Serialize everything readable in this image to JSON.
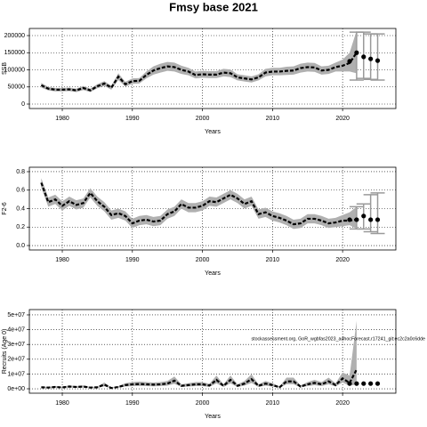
{
  "title": "Fmsy base 2021",
  "chart_data": [
    {
      "type": "line",
      "ylabel": "SSB",
      "xlabel": "Years",
      "xlim": [
        1975.3,
        2027.6
      ],
      "xticks": [
        1980,
        1990,
        2000,
        2010,
        2020
      ],
      "ylim": [
        -13000,
        220800
      ],
      "yticks": [
        0,
        50000,
        100000,
        150000,
        200000
      ],
      "grid": true,
      "color": "#000000",
      "band_color": "#b0b0b0",
      "x": [
        1977,
        1978,
        1979,
        1980,
        1981,
        1982,
        1983,
        1984,
        1985,
        1986,
        1987,
        1988,
        1989,
        1990,
        1991,
        1992,
        1993,
        1994,
        1995,
        1996,
        1997,
        1998,
        1999,
        2000,
        2001,
        2002,
        2003,
        2004,
        2005,
        2006,
        2007,
        2008,
        2009,
        2010,
        2011,
        2012,
        2013,
        2014,
        2015,
        2016,
        2017,
        2018,
        2019,
        2020,
        2021,
        2022
      ],
      "values": [
        55000,
        45000,
        42000,
        42000,
        43000,
        40000,
        47000,
        40000,
        52000,
        60000,
        48000,
        80000,
        58000,
        67000,
        68000,
        85000,
        98000,
        105000,
        110000,
        108000,
        100000,
        95000,
        85000,
        87000,
        86000,
        86000,
        92000,
        90000,
        78000,
        75000,
        72000,
        78000,
        92000,
        95000,
        95000,
        97000,
        98000,
        105000,
        108000,
        107000,
        98000,
        100000,
        108000,
        112000,
        120000,
        150000
      ],
      "lower": [
        48000,
        40000,
        37000,
        37000,
        38000,
        35000,
        41000,
        35000,
        46000,
        53000,
        42000,
        70000,
        51000,
        59000,
        60000,
        75000,
        86000,
        92000,
        97000,
        95000,
        88000,
        84000,
        75000,
        77000,
        76000,
        76000,
        81000,
        79000,
        69000,
        66000,
        63000,
        69000,
        81000,
        84000,
        84000,
        85000,
        86000,
        92000,
        95000,
        94000,
        86000,
        88000,
        95000,
        95000,
        95000,
        90000
      ],
      "upper": [
        62000,
        50000,
        47000,
        47000,
        48000,
        45000,
        53000,
        45000,
        58000,
        67000,
        54000,
        90000,
        65000,
        75000,
        76000,
        95000,
        110000,
        118000,
        123000,
        121000,
        112000,
        106000,
        95000,
        97000,
        96000,
        96000,
        103000,
        101000,
        87000,
        84000,
        81000,
        87000,
        103000,
        106000,
        106000,
        109000,
        110000,
        118000,
        121000,
        120000,
        110000,
        112000,
        121000,
        130000,
        150000,
        215000
      ],
      "forecast": {
        "x": [
          2021,
          2022,
          2023,
          2024,
          2025
        ],
        "values": [
          125000,
          150000,
          138000,
          132000,
          127000
        ],
        "low": [
          null,
          70000,
          75000,
          72000,
          70000
        ],
        "high": [
          null,
          210000,
          210000,
          205000,
          205000
        ]
      }
    },
    {
      "type": "line",
      "ylabel": "F2-6",
      "xlabel": "Years",
      "xlim": [
        1975.3,
        2027.6
      ],
      "xticks": [
        1980,
        1990,
        2000,
        2010,
        2020
      ],
      "ylim": [
        -0.048,
        0.848
      ],
      "yticks": [
        {
          "value": 0,
          "label": "0.0"
        },
        0.2,
        0.4,
        0.6,
        0.8
      ],
      "grid": true,
      "color": "#000000",
      "band_color": "#b0b0b0",
      "x": [
        1977,
        1978,
        1979,
        1980,
        1981,
        1982,
        1983,
        1984,
        1985,
        1986,
        1987,
        1988,
        1989,
        1990,
        1991,
        1992,
        1993,
        1994,
        1995,
        1996,
        1997,
        1998,
        1999,
        2000,
        2001,
        2002,
        2003,
        2004,
        2005,
        2006,
        2007,
        2008,
        2009,
        2010,
        2011,
        2012,
        2013,
        2014,
        2015,
        2016,
        2017,
        2018,
        2019,
        2020,
        2021,
        2022
      ],
      "values": [
        0.68,
        0.47,
        0.5,
        0.43,
        0.48,
        0.44,
        0.46,
        0.57,
        0.48,
        0.42,
        0.33,
        0.35,
        0.32,
        0.24,
        0.27,
        0.28,
        0.26,
        0.27,
        0.34,
        0.37,
        0.45,
        0.41,
        0.41,
        0.43,
        0.48,
        0.47,
        0.51,
        0.55,
        0.51,
        0.45,
        0.48,
        0.34,
        0.36,
        0.32,
        0.3,
        0.27,
        0.23,
        0.24,
        0.29,
        0.29,
        0.27,
        0.24,
        0.25,
        0.27,
        0.27,
        0.28
      ],
      "lower": [
        0.63,
        0.42,
        0.45,
        0.38,
        0.43,
        0.39,
        0.41,
        0.52,
        0.43,
        0.37,
        0.28,
        0.3,
        0.27,
        0.19,
        0.22,
        0.23,
        0.21,
        0.22,
        0.29,
        0.32,
        0.4,
        0.36,
        0.36,
        0.38,
        0.43,
        0.42,
        0.46,
        0.5,
        0.46,
        0.4,
        0.43,
        0.29,
        0.31,
        0.27,
        0.25,
        0.22,
        0.18,
        0.19,
        0.24,
        0.24,
        0.22,
        0.19,
        0.2,
        0.21,
        0.22,
        0.18
      ],
      "upper": [
        0.73,
        0.52,
        0.55,
        0.48,
        0.53,
        0.49,
        0.51,
        0.62,
        0.53,
        0.47,
        0.38,
        0.4,
        0.37,
        0.29,
        0.32,
        0.33,
        0.31,
        0.32,
        0.39,
        0.42,
        0.5,
        0.46,
        0.46,
        0.48,
        0.53,
        0.52,
        0.56,
        0.6,
        0.56,
        0.5,
        0.53,
        0.39,
        0.41,
        0.37,
        0.35,
        0.32,
        0.28,
        0.29,
        0.34,
        0.34,
        0.32,
        0.29,
        0.3,
        0.33,
        0.36,
        0.42
      ],
      "forecast": {
        "x": [
          2021,
          2022,
          2023,
          2024,
          2025
        ],
        "values": [
          0.28,
          0.28,
          0.32,
          0.28,
          0.28
        ],
        "low": [
          null,
          0.18,
          0.18,
          0.15,
          0.13
        ],
        "high": [
          null,
          0.42,
          0.45,
          0.55,
          0.57
        ]
      }
    },
    {
      "type": "line",
      "ylabel": "Recruits (Age 0)",
      "xlabel": "Years",
      "xlim": [
        1975.3,
        2027.6
      ],
      "xticks": [
        1980,
        1990,
        2000,
        2010,
        2020
      ],
      "ylim": [
        -3000000,
        53600000
      ],
      "yticks": [
        {
          "value": 0,
          "label": "0e+00"
        },
        {
          "value": 10000000,
          "label": "1e+07"
        },
        {
          "value": 20000000,
          "label": "2e+07"
        },
        {
          "value": 30000000,
          "label": "3e+07"
        },
        {
          "value": 40000000,
          "label": "4e+07"
        },
        {
          "value": 50000000,
          "label": "5e+07"
        }
      ],
      "grid": true,
      "color": "#000000",
      "band_color": "#b0b0b0",
      "annotation": "stockassessment.org, GoR_wgbfas2023_adhocForecast.r17241_git:ec2c2a0c6dde",
      "x": [
        1977,
        1978,
        1979,
        1980,
        1981,
        1982,
        1983,
        1984,
        1985,
        1986,
        1987,
        1988,
        1989,
        1990,
        1991,
        1992,
        1993,
        1994,
        1995,
        1996,
        1997,
        1998,
        1999,
        2000,
        2001,
        2002,
        2003,
        2004,
        2005,
        2006,
        2007,
        2008,
        2009,
        2010,
        2011,
        2012,
        2013,
        2014,
        2015,
        2016,
        2017,
        2018,
        2019,
        2020,
        2021,
        2022
      ],
      "values": [
        1000000.0,
        800000.0,
        1200000.0,
        900000.0,
        1500000.0,
        1200000.0,
        1500000.0,
        800000.0,
        1000000.0,
        2800000.0,
        500000.0,
        1200000.0,
        2500000.0,
        3000000.0,
        3200000.0,
        3000000.0,
        2800000.0,
        3000000.0,
        3500000.0,
        5500000.0,
        2000000.0,
        2500000.0,
        3000000.0,
        3000000.0,
        2200000.0,
        6000000.0,
        2000000.0,
        6000000.0,
        2000000.0,
        3500000.0,
        6500000.0,
        2000000.0,
        3500000.0,
        2500000.0,
        1000000.0,
        5000000.0,
        5000000.0,
        1500000.0,
        3000000.0,
        4000000.0,
        3000000.0,
        5000000.0,
        2500000.0,
        7000000.0,
        4000000.0,
        13000000.0
      ],
      "lower": [
        600000.0,
        500000.0,
        700000.0,
        500000.0,
        900000.0,
        700000.0,
        900000.0,
        500000.0,
        600000.0,
        1700000.0,
        300000.0,
        700000.0,
        1500000.0,
        1800000.0,
        1900000.0,
        1800000.0,
        1700000.0,
        1800000.0,
        2100000.0,
        3300000.0,
        1200000.0,
        1500000.0,
        1800000.0,
        1800000.0,
        1300000.0,
        3600000.0,
        1200000.0,
        3600000.0,
        1200000.0,
        2100000.0,
        3900000.0,
        1200000.0,
        2100000.0,
        1500000.0,
        600000.0,
        3000000.0,
        3000000.0,
        900000.0,
        1800000.0,
        2400000.0,
        1800000.0,
        3000000.0,
        1500000.0,
        4200000.0,
        2000000.0,
        3000000.0
      ],
      "upper": [
        1500000.0,
        1200000.0,
        1800000.0,
        1400000.0,
        2300000.0,
        1800000.0,
        2300000.0,
        1200000.0,
        1500000.0,
        4200000.0,
        800000.0,
        1800000.0,
        3800000.0,
        4500000.0,
        4800000.0,
        4500000.0,
        4200000.0,
        4500000.0,
        5300000.0,
        8300000.0,
        3000000.0,
        3800000.0,
        4500000.0,
        4500000.0,
        3300000.0,
        9000000.0,
        3000000.0,
        9000000.0,
        3000000.0,
        5300000.0,
        9800000.0,
        3000000.0,
        5300000.0,
        3800000.0,
        1500000.0,
        7500000.0,
        7500000.0,
        2300000.0,
        4500000.0,
        6000000.0,
        4500000.0,
        7500000.0,
        3800000.0,
        11000000.0,
        9000000.0,
        46000000.0
      ],
      "forecast": {
        "x": [
          2021,
          2022,
          2023,
          2024,
          2025
        ],
        "values": [
          3500000.0,
          3500000.0,
          3500000.0,
          3500000.0,
          3500000.0
        ]
      }
    }
  ]
}
